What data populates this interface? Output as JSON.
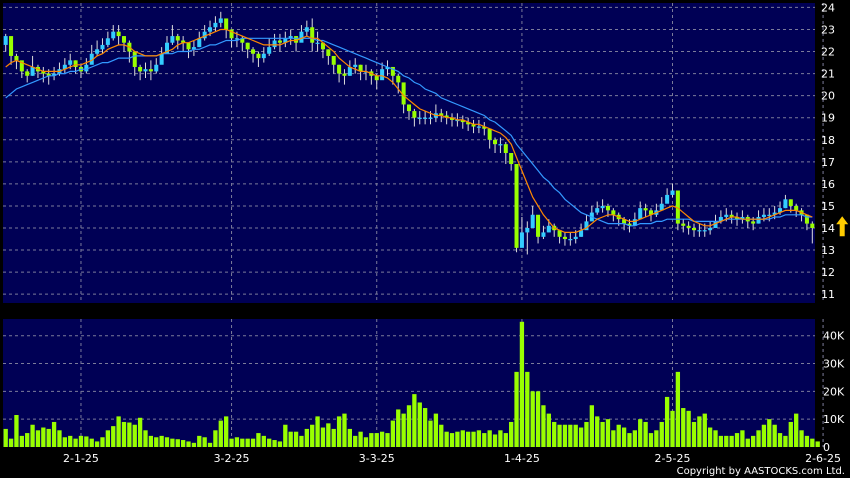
{
  "chart_data": [
    {
      "type": "candlestick",
      "title": "",
      "x_tick_labels": [
        "2-1-25",
        "3-2-25",
        "3-3-25",
        "1-4-25",
        "2-5-25",
        "2-6-25"
      ],
      "x_tick_index": [
        14,
        42,
        69,
        96,
        124,
        152
      ],
      "y_ticks": [
        11,
        12,
        13,
        14,
        15,
        16,
        17,
        18,
        19,
        20,
        21,
        22,
        23,
        24
      ],
      "ylim": [
        10.6,
        24.2
      ],
      "grid": true,
      "colors": {
        "up": "#33ccff",
        "down": "#99ff00",
        "ma_short": "#ff8800",
        "ma_long": "#3399ff",
        "plot_bg": "#000055",
        "grid": "#7b7b9a",
        "marker": "#ffcc00"
      },
      "close": [
        22.7,
        21.8,
        21.6,
        21.1,
        20.9,
        21.3,
        21.1,
        21.0,
        20.9,
        21.0,
        21.2,
        21.4,
        21.6,
        21.3,
        21.1,
        21.4,
        21.9,
        22.1,
        22.3,
        22.6,
        22.9,
        22.7,
        22.4,
        22.0,
        21.3,
        21.1,
        21.2,
        21.1,
        21.4,
        21.9,
        22.4,
        22.7,
        22.5,
        22.4,
        22.1,
        22.2,
        22.6,
        22.9,
        23.1,
        23.3,
        23.5,
        23.0,
        22.6,
        22.6,
        22.4,
        22.1,
        21.9,
        21.7,
        21.9,
        22.2,
        22.5,
        22.4,
        22.6,
        22.7,
        22.4,
        22.9,
        23.1,
        22.4,
        22.4,
        22.1,
        21.8,
        21.4,
        21.0,
        20.9,
        21.3,
        21.4,
        21.1,
        21.1,
        20.9,
        20.7,
        21.2,
        21.3,
        20.9,
        20.6,
        19.6,
        19.3,
        19.0,
        19.0,
        19.0,
        19.0,
        19.2,
        19.1,
        19.0,
        18.9,
        18.9,
        18.8,
        18.7,
        18.6,
        18.6,
        18.5,
        18.0,
        17.8,
        17.8,
        17.4,
        16.9,
        13.1,
        13.8,
        14.0,
        14.6,
        13.6,
        13.8,
        14.1,
        13.9,
        13.6,
        13.5,
        13.5,
        13.6,
        13.9,
        14.3,
        14.7,
        14.9,
        15.0,
        14.8,
        14.6,
        14.4,
        14.2,
        14.1,
        14.4,
        14.9,
        14.8,
        14.6,
        14.8,
        15.1,
        15.5,
        15.7,
        14.2,
        14.1,
        14.0,
        13.9,
        13.9,
        13.9,
        14.0,
        14.3,
        14.5,
        14.6,
        14.5,
        14.4,
        14.5,
        14.3,
        14.2,
        14.5,
        14.6,
        14.6,
        14.7,
        14.9,
        15.3,
        15.0,
        14.8,
        14.6,
        14.2,
        14.0
      ],
      "high": [
        22.8,
        22.0,
        21.9,
        21.4,
        21.2,
        21.8,
        21.4,
        21.3,
        21.2,
        21.3,
        21.5,
        21.7,
        21.9,
        21.6,
        21.4,
        21.7,
        22.3,
        22.5,
        22.6,
        22.9,
        23.2,
        23.2,
        22.7,
        22.5,
        21.6,
        21.4,
        21.5,
        21.6,
        21.7,
        22.2,
        22.7,
        23.2,
        22.8,
        22.7,
        22.4,
        22.5,
        22.9,
        23.2,
        23.4,
        23.6,
        23.8,
        23.4,
        23.0,
        22.9,
        22.7,
        22.4,
        22.2,
        22.0,
        22.2,
        22.6,
        22.8,
        22.8,
        22.9,
        23.0,
        22.7,
        23.2,
        23.4,
        23.5,
        22.9,
        22.4,
        22.1,
        21.7,
        21.4,
        21.2,
        21.6,
        21.7,
        21.4,
        21.4,
        21.2,
        21.0,
        21.5,
        21.6,
        21.3,
        21.0,
        20.2,
        19.6,
        19.4,
        19.3,
        19.3,
        19.3,
        19.6,
        19.4,
        19.3,
        19.2,
        19.2,
        19.1,
        19.0,
        18.9,
        18.9,
        18.8,
        18.4,
        18.1,
        18.1,
        17.9,
        17.2,
        14.2,
        14.5,
        14.3,
        15.0,
        14.0,
        14.1,
        14.4,
        14.2,
        13.9,
        13.8,
        13.8,
        13.9,
        14.2,
        14.6,
        15.0,
        15.2,
        15.3,
        15.1,
        14.9,
        14.7,
        14.5,
        14.4,
        14.7,
        15.2,
        15.1,
        14.9,
        15.1,
        15.4,
        15.8,
        16.0,
        14.5,
        14.4,
        14.3,
        14.2,
        14.2,
        14.2,
        14.3,
        14.6,
        14.8,
        14.9,
        14.8,
        14.7,
        14.8,
        14.6,
        14.5,
        14.8,
        14.9,
        14.9,
        15.0,
        15.2,
        15.5,
        15.3,
        15.1,
        14.9,
        14.5,
        14.3
      ],
      "low": [
        22.0,
        21.4,
        21.2,
        20.8,
        20.6,
        20.9,
        20.8,
        20.6,
        20.5,
        20.7,
        20.9,
        21.0,
        21.2,
        21.0,
        20.8,
        21.0,
        21.5,
        21.8,
        21.9,
        22.2,
        22.5,
        22.3,
        22.0,
        21.5,
        20.9,
        20.7,
        20.8,
        20.7,
        21.0,
        21.5,
        22.0,
        22.3,
        22.1,
        22.0,
        21.7,
        21.8,
        22.2,
        22.5,
        22.7,
        22.9,
        23.1,
        22.6,
        22.2,
        22.2,
        22.0,
        21.7,
        21.5,
        21.3,
        21.5,
        21.8,
        22.1,
        22.0,
        22.2,
        22.3,
        22.0,
        22.5,
        22.7,
        22.0,
        22.0,
        21.7,
        21.4,
        21.0,
        20.6,
        20.5,
        20.9,
        21.0,
        20.7,
        20.7,
        20.5,
        20.3,
        20.8,
        20.9,
        20.5,
        20.1,
        19.2,
        18.9,
        18.6,
        18.7,
        18.7,
        18.7,
        18.8,
        18.8,
        18.7,
        18.6,
        18.6,
        18.5,
        18.4,
        18.3,
        18.3,
        18.2,
        17.6,
        17.4,
        17.4,
        16.9,
        16.6,
        12.9,
        13.4,
        12.8,
        14.2,
        13.3,
        13.5,
        13.8,
        13.6,
        13.3,
        13.2,
        13.2,
        13.3,
        13.6,
        14.0,
        14.4,
        14.6,
        14.7,
        14.5,
        14.3,
        14.1,
        13.9,
        13.8,
        14.1,
        14.6,
        14.5,
        14.3,
        14.5,
        14.8,
        15.2,
        15.4,
        13.9,
        13.8,
        13.7,
        13.6,
        13.6,
        13.6,
        13.7,
        14.0,
        14.2,
        14.3,
        14.2,
        14.1,
        14.2,
        14.0,
        13.9,
        14.2,
        14.3,
        14.3,
        14.4,
        14.6,
        14.9,
        14.7,
        14.5,
        14.3,
        13.9,
        13.3
      ],
      "ma_short": [
        21.3,
        21.5,
        21.6,
        21.5,
        21.4,
        21.3,
        21.2,
        21.1,
        21.1,
        21.1,
        21.1,
        21.2,
        21.3,
        21.4,
        21.4,
        21.5,
        21.6,
        21.8,
        21.9,
        22.1,
        22.2,
        22.3,
        22.3,
        22.2,
        22.0,
        21.9,
        21.8,
        21.8,
        21.8,
        21.9,
        22.0,
        22.1,
        22.3,
        22.4,
        22.4,
        22.5,
        22.6,
        22.7,
        22.8,
        22.9,
        23.0,
        23.0,
        22.9,
        22.8,
        22.7,
        22.6,
        22.5,
        22.4,
        22.3,
        22.3,
        22.3,
        22.3,
        22.4,
        22.5,
        22.5,
        22.6,
        22.7,
        22.6,
        22.6,
        22.4,
        22.2,
        22.0,
        21.7,
        21.5,
        21.3,
        21.2,
        21.1,
        21.1,
        21.0,
        20.9,
        20.9,
        20.8,
        20.6,
        20.3,
        20.0,
        19.8,
        19.6,
        19.4,
        19.3,
        19.2,
        19.1,
        19.1,
        19.0,
        19.0,
        18.9,
        18.9,
        18.8,
        18.7,
        18.7,
        18.6,
        18.5,
        18.4,
        18.3,
        18.1,
        17.8,
        17.2,
        16.6,
        16.0,
        15.4,
        15.0,
        14.6,
        14.3,
        14.0,
        13.9,
        13.8,
        13.8,
        13.8,
        13.9,
        14.0,
        14.2,
        14.4,
        14.5,
        14.6,
        14.6,
        14.5,
        14.4,
        14.3,
        14.3,
        14.4,
        14.5,
        14.6,
        14.7,
        14.8,
        14.9,
        15.0,
        14.9,
        14.7,
        14.5,
        14.3,
        14.2,
        14.1,
        14.1,
        14.2,
        14.3,
        14.4,
        14.5,
        14.5,
        14.4,
        14.4,
        14.4,
        14.4,
        14.4,
        14.5,
        14.6,
        14.7,
        14.8,
        14.8,
        14.8,
        14.7,
        14.6,
        14.5
      ],
      "ma_long": [
        19.9,
        20.1,
        20.3,
        20.4,
        20.5,
        20.6,
        20.7,
        20.8,
        20.9,
        20.9,
        21.0,
        21.0,
        21.1,
        21.1,
        21.2,
        21.2,
        21.3,
        21.4,
        21.5,
        21.5,
        21.6,
        21.7,
        21.7,
        21.7,
        21.8,
        21.8,
        21.8,
        21.8,
        21.8,
        21.9,
        21.9,
        21.9,
        22.0,
        22.0,
        22.0,
        22.1,
        22.1,
        22.2,
        22.3,
        22.3,
        22.4,
        22.5,
        22.5,
        22.5,
        22.6,
        22.6,
        22.6,
        22.6,
        22.6,
        22.6,
        22.6,
        22.6,
        22.6,
        22.6,
        22.6,
        22.6,
        22.6,
        22.6,
        22.5,
        22.5,
        22.4,
        22.3,
        22.2,
        22.1,
        22.0,
        21.9,
        21.8,
        21.7,
        21.6,
        21.5,
        21.4,
        21.3,
        21.2,
        21.1,
        20.9,
        20.8,
        20.6,
        20.5,
        20.3,
        20.2,
        20.1,
        19.9,
        19.8,
        19.7,
        19.6,
        19.5,
        19.4,
        19.3,
        19.2,
        19.1,
        18.9,
        18.8,
        18.6,
        18.4,
        18.2,
        17.8,
        17.5,
        17.2,
        16.9,
        16.6,
        16.3,
        16.1,
        15.8,
        15.6,
        15.3,
        15.1,
        14.9,
        14.7,
        14.6,
        14.5,
        14.4,
        14.3,
        14.2,
        14.2,
        14.2,
        14.2,
        14.1,
        14.1,
        14.2,
        14.2,
        14.2,
        14.3,
        14.3,
        14.4,
        14.4,
        14.4,
        14.4,
        14.4,
        14.3,
        14.3,
        14.3,
        14.3,
        14.3,
        14.3,
        14.4,
        14.4,
        14.4,
        14.4,
        14.4,
        14.4,
        14.4,
        14.4,
        14.4,
        14.5,
        14.5,
        14.6,
        14.6,
        14.6,
        14.6,
        14.5,
        14.5
      ],
      "marker": {
        "index": 155,
        "value": 13.9
      }
    },
    {
      "type": "bar",
      "title": "",
      "y_ticks": [
        0,
        10000,
        20000,
        30000,
        40000
      ],
      "y_tick_labels": [
        "0",
        "10K",
        "20K",
        "30K",
        "40K"
      ],
      "ylim": [
        0,
        46000
      ],
      "grid": true,
      "colors": {
        "bar": "#99ff00",
        "plot_bg": "#000055",
        "grid": "#7b7b9a"
      },
      "values": [
        6500,
        3000,
        11500,
        4000,
        5000,
        8000,
        6000,
        7000,
        6500,
        9000,
        6000,
        3500,
        4000,
        3000,
        4000,
        3800,
        3000,
        2000,
        3500,
        6000,
        7500,
        11000,
        9000,
        8800,
        8000,
        10500,
        6000,
        4000,
        3500,
        4000,
        3500,
        3000,
        2800,
        2500,
        2000,
        1500,
        4000,
        3500,
        1500,
        6000,
        9500,
        11000,
        3000,
        3500,
        3000,
        3000,
        3000,
        5000,
        4000,
        3000,
        2500,
        2000,
        8000,
        5500,
        5500,
        4000,
        6500,
        8000,
        11000,
        7000,
        8500,
        6500,
        11000,
        12000,
        6500,
        4000,
        5500,
        3500,
        5000,
        5000,
        5500,
        5000,
        9500,
        13500,
        12000,
        15000,
        19000,
        16000,
        14000,
        9500,
        12000,
        8000,
        5500,
        5000,
        5500,
        6000,
        5500,
        5500,
        6000,
        5000,
        6000,
        4500,
        6000,
        5000,
        9000,
        27000,
        45000,
        27000,
        20000,
        20000,
        15000,
        12000,
        9000,
        8000,
        8000,
        8000,
        8000,
        7000,
        9000,
        15000,
        11000,
        9000,
        10000,
        6000,
        8000,
        7000,
        5000,
        6000,
        10000,
        9000,
        5000,
        6000,
        9000,
        18000,
        13000,
        27000,
        14000,
        13000,
        9000,
        11000,
        12000,
        7000,
        6000,
        4000,
        4000,
        4000,
        5000,
        6000,
        3000,
        4000,
        6000,
        8000,
        10000,
        8000,
        5000,
        4000,
        9000,
        12000,
        6000,
        4000,
        3000,
        2000
      ],
      "copyright": "Copyright by AASTOCKS.com Ltd."
    }
  ]
}
